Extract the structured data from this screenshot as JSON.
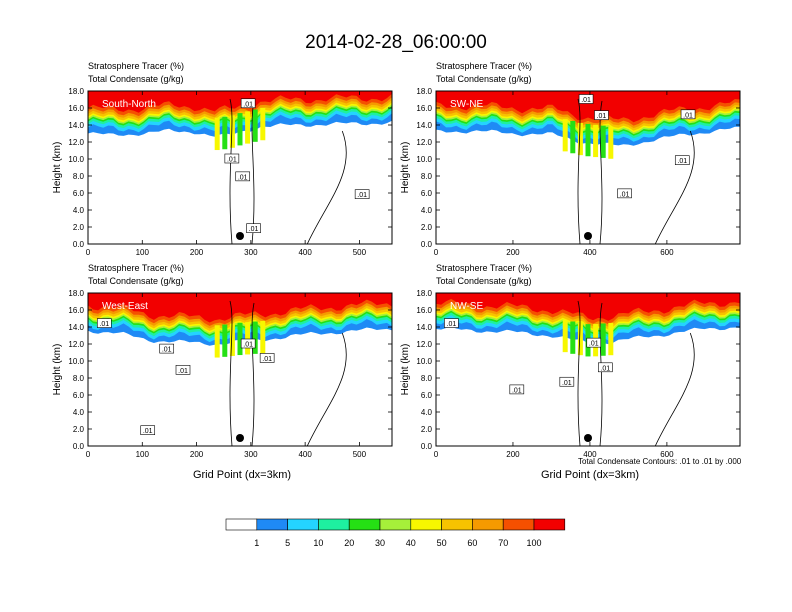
{
  "figure": {
    "title": "2014-02-28_06:00:00",
    "contour_note": "Total Condensate Contours: .01 to .01 by .000",
    "colorbar": {
      "colors": [
        "#ffffff",
        "#1f8af5",
        "#24d4ff",
        "#1ef0a0",
        "#25e014",
        "#a6f03a",
        "#f7f700",
        "#f7c300",
        "#f59a00",
        "#f55000",
        "#f20000"
      ],
      "labels": [
        "1",
        "5",
        "10",
        "20",
        "30",
        "40",
        "50",
        "60",
        "70",
        "100"
      ]
    }
  },
  "chart_data": [
    {
      "type": "heatmap",
      "panel": "South-North",
      "subtitle_1": "Stratosphere Tracer   (%)",
      "subtitle_2": "Total Condensate   (g/kg)",
      "xlabel": "",
      "ylabel": "Height (km)",
      "xlim": [
        0,
        560
      ],
      "ylim": [
        0,
        18
      ],
      "x_ticks": [
        0,
        100,
        200,
        300,
        400,
        500
      ],
      "y_ticks": [
        0,
        2,
        4,
        6,
        8,
        10,
        12,
        14,
        16,
        18
      ],
      "marker_x": 280,
      "tracer_band": [
        [
          0,
          13.0
        ],
        [
          40,
          12.8
        ],
        [
          100,
          13.0
        ],
        [
          150,
          13.3
        ],
        [
          200,
          13.2
        ],
        [
          230,
          12.6
        ],
        [
          260,
          12.8
        ],
        [
          280,
          13.2
        ],
        [
          320,
          13.8
        ],
        [
          380,
          14.0
        ],
        [
          450,
          14.1
        ],
        [
          520,
          14.2
        ],
        [
          560,
          14.3
        ]
      ],
      "contour_labels": [
        {
          "x": 295,
          "y": 16.5,
          "text": ".01"
        },
        {
          "x": 265,
          "y": 10.0,
          "text": ".01"
        },
        {
          "x": 285,
          "y": 7.9,
          "text": ".01"
        },
        {
          "x": 305,
          "y": 1.8,
          "text": ".01"
        },
        {
          "x": 505,
          "y": 5.8,
          "text": ".01"
        }
      ]
    },
    {
      "type": "heatmap",
      "panel": "SW-NE",
      "subtitle_1": "Stratosphere Tracer   (%)",
      "subtitle_2": "Total Condensate   (g/kg)",
      "xlabel": "",
      "ylabel": "Height (km)",
      "xlim": [
        0,
        790
      ],
      "ylim": [
        0,
        18
      ],
      "x_ticks": [
        0,
        200,
        400,
        600
      ],
      "y_ticks": [
        0,
        2,
        4,
        6,
        8,
        10,
        12,
        14,
        16,
        18
      ],
      "marker_x": 395,
      "tracer_band": [
        [
          0,
          13.2
        ],
        [
          100,
          13.3
        ],
        [
          200,
          13.0
        ],
        [
          300,
          12.9
        ],
        [
          380,
          12.0
        ],
        [
          420,
          11.8
        ],
        [
          480,
          11.5
        ],
        [
          560,
          12.2
        ],
        [
          640,
          12.8
        ],
        [
          720,
          13.3
        ],
        [
          790,
          13.6
        ]
      ],
      "contour_labels": [
        {
          "x": 390,
          "y": 17.0,
          "text": ".01"
        },
        {
          "x": 430,
          "y": 15.1,
          "text": ".01"
        },
        {
          "x": 655,
          "y": 15.2,
          "text": ".01"
        },
        {
          "x": 640,
          "y": 9.8,
          "text": ".01"
        },
        {
          "x": 490,
          "y": 5.9,
          "text": ".01"
        }
      ]
    },
    {
      "type": "heatmap",
      "panel": "West-East",
      "subtitle_1": "Stratosphere Tracer   (%)",
      "subtitle_2": "Total Condensate   (g/kg)",
      "xlabel": "Grid Point (dx=3km)",
      "ylabel": "Height (km)",
      "xlim": [
        0,
        560
      ],
      "ylim": [
        0,
        18
      ],
      "x_ticks": [
        0,
        100,
        200,
        300,
        400,
        500
      ],
      "y_ticks": [
        0,
        2,
        4,
        6,
        8,
        10,
        12,
        14,
        16,
        18
      ],
      "marker_x": 280,
      "tracer_band": [
        [
          0,
          13.6
        ],
        [
          60,
          13.2
        ],
        [
          120,
          12.4
        ],
        [
          180,
          12.2
        ],
        [
          240,
          12.0
        ],
        [
          280,
          12.3
        ],
        [
          320,
          12.5
        ],
        [
          380,
          13.0
        ],
        [
          440,
          13.3
        ],
        [
          500,
          13.6
        ],
        [
          560,
          13.8
        ]
      ],
      "contour_labels": [
        {
          "x": 30,
          "y": 14.4,
          "text": ".01"
        },
        {
          "x": 145,
          "y": 11.4,
          "text": ".01"
        },
        {
          "x": 295,
          "y": 12.0,
          "text": ".01"
        },
        {
          "x": 330,
          "y": 10.3,
          "text": ".01"
        },
        {
          "x": 175,
          "y": 8.9,
          "text": ".01"
        },
        {
          "x": 110,
          "y": 1.8,
          "text": ".01"
        }
      ]
    },
    {
      "type": "heatmap",
      "panel": "NW-SE",
      "subtitle_1": "Stratosphere Tracer   (%)",
      "subtitle_2": "Total Condensate   (g/kg)",
      "xlabel": "Grid Point (dx=3km)",
      "ylabel": "Height (km)",
      "xlim": [
        0,
        790
      ],
      "ylim": [
        0,
        18
      ],
      "x_ticks": [
        0,
        200,
        400,
        600
      ],
      "y_ticks": [
        0,
        2,
        4,
        6,
        8,
        10,
        12,
        14,
        16,
        18
      ],
      "marker_x": 395,
      "tracer_band": [
        [
          0,
          13.8
        ],
        [
          100,
          13.6
        ],
        [
          200,
          13.4
        ],
        [
          300,
          13.0
        ],
        [
          360,
          12.4
        ],
        [
          400,
          12.1
        ],
        [
          460,
          12.3
        ],
        [
          540,
          12.8
        ],
        [
          620,
          13.3
        ],
        [
          700,
          13.8
        ],
        [
          790,
          14.0
        ]
      ],
      "contour_labels": [
        {
          "x": 40,
          "y": 14.4,
          "text": ".01"
        },
        {
          "x": 410,
          "y": 12.1,
          "text": ".01"
        },
        {
          "x": 440,
          "y": 9.2,
          "text": ".01"
        },
        {
          "x": 340,
          "y": 7.5,
          "text": ".01"
        },
        {
          "x": 210,
          "y": 6.6,
          "text": ".01"
        }
      ]
    }
  ]
}
